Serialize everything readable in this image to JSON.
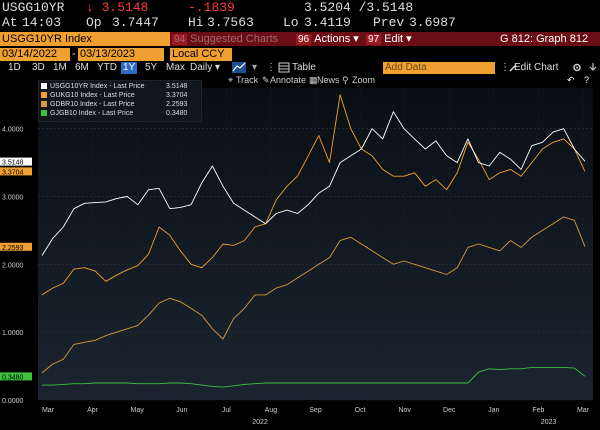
{
  "header": {
    "ticker": "USGG10YR",
    "last": "↓ 3.5148",
    "change": "-.1839",
    "bid_ask": "3.5204 /3.5148",
    "at_label": "At",
    "time": "14:03",
    "open_label": "Op",
    "open": "3.7447",
    "high_label": "Hi",
    "high": "3.7563",
    "low_label": "Lo",
    "low": "3.4119",
    "prev_label": "Prev",
    "prev": "3.6987"
  },
  "function_bar": {
    "security": "USGG10YR Index",
    "suggested_num": "94",
    "suggested": "Suggested Charts",
    "actions_num": "96",
    "actions": "Actions ▾",
    "edit_num": "97",
    "edit": "Edit ▾",
    "graph": "G 812: Graph 812"
  },
  "dates": {
    "start": "03/14/2022",
    "end": "03/13/2023",
    "currency": "Local CCY ▾"
  },
  "toolbar": {
    "periods": [
      "1D",
      "3D",
      "1M",
      "6M",
      "YTD",
      "1Y",
      "5Y",
      "Max"
    ],
    "selected_period": "1Y",
    "frequency": "Daily ▾",
    "table": "Table",
    "add_data": "Add Data",
    "edit_chart": "Edit Chart",
    "settings_icon": "gear-icon",
    "download_icon": "download-icon",
    "help_icon": "help-icon"
  },
  "annotations": {
    "track": "Track",
    "annotate": "Annotate",
    "news": "News",
    "zoom": "Zoom"
  },
  "chart_data": {
    "type": "line",
    "legend_placement": "top-left",
    "grid": true,
    "ylim": [
      0,
      4.6
    ],
    "yticks": [
      "0.0000",
      "1.0000",
      "2.0000",
      "3.0000",
      "4.0000"
    ],
    "x_month_labels": [
      "Mar",
      "Apr",
      "May",
      "Jun",
      "Jul",
      "Aug",
      "Sep",
      "Oct",
      "Nov",
      "Dec",
      "Jan",
      "Feb",
      "Mar"
    ],
    "x_year_labels": [
      "2022",
      "2023"
    ],
    "series": [
      {
        "name": "USGG10YR Index - Last Price",
        "last": "3.5148",
        "color": "#ffffff",
        "values": [
          2.13,
          2.38,
          2.55,
          2.82,
          2.9,
          2.91,
          2.92,
          2.97,
          3.0,
          2.88,
          3.1,
          3.12,
          2.82,
          2.84,
          2.88,
          3.2,
          3.45,
          3.15,
          2.9,
          2.8,
          2.7,
          2.6,
          2.75,
          2.8,
          2.75,
          2.88,
          3.05,
          3.15,
          3.5,
          3.6,
          3.7,
          4.0,
          3.85,
          4.25,
          4.0,
          3.85,
          3.7,
          3.82,
          3.6,
          3.5,
          3.85,
          3.5,
          3.45,
          3.65,
          3.55,
          3.4,
          3.75,
          3.8,
          3.95,
          4.0,
          3.7,
          3.52
        ]
      },
      {
        "name": "GUKG10 Index - Last Price",
        "last": "3.3704",
        "color": "#f0a030",
        "values": [
          1.55,
          1.65,
          1.72,
          1.93,
          1.95,
          1.9,
          1.75,
          1.84,
          1.92,
          1.98,
          2.15,
          2.55,
          2.43,
          2.2,
          2.0,
          1.95,
          2.1,
          2.3,
          2.28,
          2.35,
          2.55,
          2.6,
          2.95,
          3.15,
          3.3,
          3.6,
          3.9,
          3.5,
          4.5,
          4.0,
          3.7,
          3.6,
          3.4,
          3.3,
          3.3,
          3.35,
          3.15,
          3.25,
          3.1,
          3.35,
          3.8,
          3.55,
          3.25,
          3.35,
          3.4,
          3.3,
          3.5,
          3.7,
          3.8,
          3.85,
          3.7,
          3.37
        ]
      },
      {
        "name": "GDBR10 Index - Last Price",
        "last": "2.2593",
        "color": "#d89a3a",
        "values": [
          0.4,
          0.53,
          0.6,
          0.82,
          0.85,
          0.88,
          0.95,
          1.0,
          1.05,
          1.1,
          1.25,
          1.43,
          1.5,
          1.45,
          1.35,
          1.25,
          1.05,
          0.9,
          1.2,
          1.35,
          1.55,
          1.55,
          1.65,
          1.7,
          1.8,
          1.9,
          2.0,
          2.1,
          2.35,
          2.4,
          2.3,
          2.2,
          2.1,
          2.0,
          2.05,
          2.0,
          1.95,
          1.9,
          1.85,
          1.95,
          2.25,
          2.3,
          2.25,
          2.2,
          2.35,
          2.25,
          2.4,
          2.5,
          2.6,
          2.7,
          2.65,
          2.26
        ]
      },
      {
        "name": "GJGB10 Index - Last Price",
        "last": "0.3480",
        "color": "#3cc23c",
        "values": [
          0.22,
          0.22,
          0.23,
          0.24,
          0.24,
          0.25,
          0.25,
          0.25,
          0.25,
          0.24,
          0.24,
          0.24,
          0.25,
          0.25,
          0.24,
          0.22,
          0.2,
          0.19,
          0.21,
          0.23,
          0.24,
          0.25,
          0.25,
          0.25,
          0.25,
          0.25,
          0.25,
          0.25,
          0.25,
          0.25,
          0.25,
          0.25,
          0.25,
          0.25,
          0.25,
          0.25,
          0.25,
          0.25,
          0.25,
          0.25,
          0.25,
          0.41,
          0.46,
          0.45,
          0.46,
          0.46,
          0.48,
          0.48,
          0.48,
          0.48,
          0.47,
          0.35
        ]
      }
    ]
  }
}
